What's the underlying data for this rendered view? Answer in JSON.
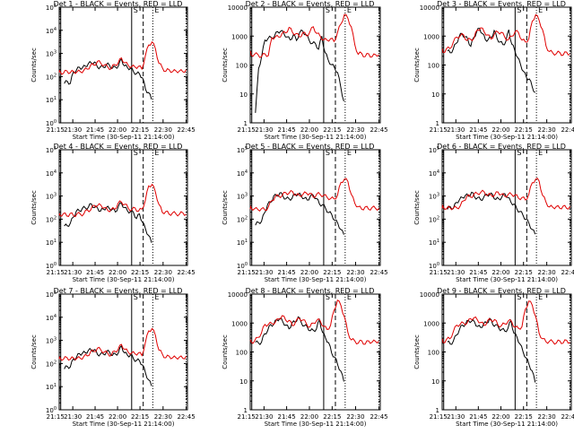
{
  "colors": {
    "events": "#000000",
    "lld": "#e00000",
    "axis": "#000000",
    "background": "#ffffff"
  },
  "shared": {
    "xlabel": "Start Time (30-Sep-11 21:14:00)",
    "ylabel": "Counts/sec",
    "title_suffix": "BLACK = Events, RED = LLD",
    "x_ticks": [
      "21:15",
      "21:30",
      "21:45",
      "22:00",
      "22:15",
      "22:30",
      "22:45"
    ],
    "markers": [
      "S",
      "E"
    ]
  },
  "chart_data": [
    {
      "type": "line",
      "title": "Det 1",
      "y_scale": "log",
      "y_ticks": [
        "10^0",
        "10^1",
        "10^2",
        "10^3",
        "10^4",
        "10^5"
      ],
      "ylim": [
        1,
        100000
      ],
      "series": [
        {
          "name": "Events",
          "color": "black",
          "values": [
            50,
            60,
            55,
            140,
            210,
            230,
            250,
            280,
            350,
            420,
            380,
            290,
            240,
            270,
            330,
            300,
            250,
            230,
            330,
            520,
            310,
            240,
            220,
            180,
            120,
            150,
            80,
            30,
            20,
            10
          ]
        },
        {
          "name": "LLD",
          "color": "red",
          "values": [
            150,
            160,
            150,
            160,
            165,
            150,
            170,
            160,
            180,
            230,
            280,
            350,
            420,
            390,
            310,
            250,
            240,
            300,
            420,
            580,
            420,
            300,
            260,
            280,
            250,
            240,
            700,
            2500,
            3100,
            1500,
            400,
            220,
            190,
            180,
            175,
            170,
            170,
            175,
            180
          ]
        }
      ]
    },
    {
      "type": "line",
      "title": "Det 2",
      "y_scale": "log",
      "y_ticks": [
        "1",
        "10",
        "100",
        "1000",
        "10000"
      ],
      "ylim": [
        1,
        10000
      ],
      "series": [
        {
          "name": "Events",
          "color": "black",
          "values": [
            2,
            80,
            200,
            700,
            900,
            800,
            1100,
            1300,
            1600,
            1200,
            900,
            800,
            1000,
            800,
            1200,
            1600,
            1100,
            700,
            600,
            500,
            400,
            900,
            300,
            150,
            100,
            90,
            50,
            20,
            5
          ]
        },
        {
          "name": "LLD",
          "color": "red",
          "values": [
            250,
            240,
            230,
            220,
            210,
            220,
            240,
            800,
            1000,
            900,
            1200,
            1400,
            1800,
            1500,
            1100,
            1000,
            1300,
            1000,
            1500,
            1900,
            1400,
            900,
            800,
            700,
            800,
            700,
            1200,
            3000,
            5000,
            4500,
            2000,
            500,
            250,
            230,
            220,
            220,
            210,
            220,
            230
          ]
        }
      ]
    },
    {
      "type": "line",
      "title": "Det 3",
      "y_scale": "log",
      "y_ticks": [
        "1",
        "10",
        "100",
        "1000",
        "10000"
      ],
      "ylim": [
        1,
        10000
      ],
      "series": [
        {
          "name": "Events",
          "color": "black",
          "values": [
            280,
            300,
            320,
            600,
            900,
            1200,
            1000,
            700,
            500,
            800,
            1500,
            1800,
            1200,
            800,
            700,
            1000,
            1400,
            900,
            600,
            500,
            700,
            1500,
            600,
            300,
            200,
            100,
            60,
            40,
            30,
            20,
            10
          ]
        },
        {
          "name": "LLD",
          "color": "red",
          "values": [
            300,
            310,
            330,
            400,
            600,
            900,
            1100,
            1000,
            800,
            700,
            900,
            1600,
            1900,
            1500,
            1000,
            900,
            1100,
            1500,
            1300,
            900,
            800,
            900,
            1600,
            1200,
            800,
            600,
            800,
            3500,
            5000,
            4000,
            1500,
            500,
            280,
            260,
            260,
            250,
            250,
            250,
            260
          ]
        }
      ]
    },
    {
      "type": "line",
      "title": "Det 4",
      "y_scale": "log",
      "y_ticks": [
        "10^0",
        "10^1",
        "10^2",
        "10^3",
        "10^4",
        "10^5"
      ],
      "ylim": [
        1,
        100000
      ],
      "series": [
        {
          "name": "Events",
          "color": "black",
          "values": [
            50,
            55,
            60,
            140,
            200,
            250,
            280,
            300,
            350,
            420,
            360,
            280,
            240,
            260,
            320,
            300,
            250,
            230,
            330,
            540,
            300,
            230,
            220,
            180,
            120,
            150,
            80,
            35,
            20,
            10
          ]
        },
        {
          "name": "LLD",
          "color": "red",
          "values": [
            150,
            155,
            160,
            155,
            160,
            150,
            165,
            160,
            180,
            230,
            280,
            360,
            420,
            380,
            310,
            250,
            240,
            300,
            430,
            600,
            420,
            300,
            260,
            280,
            250,
            240,
            700,
            2600,
            3200,
            1500,
            400,
            220,
            190,
            180,
            175,
            170,
            170,
            175,
            180
          ]
        }
      ]
    },
    {
      "type": "line",
      "title": "Det 5",
      "y_scale": "log",
      "y_ticks": [
        "10^0",
        "10^1",
        "10^2",
        "10^3",
        "10^4",
        "10^5"
      ],
      "ylim": [
        1,
        100000
      ],
      "series": [
        {
          "name": "Events",
          "color": "black",
          "values": [
            60,
            70,
            80,
            200,
            400,
            600,
            900,
            1100,
            1300,
            1000,
            800,
            700,
            900,
            1100,
            1300,
            1000,
            800,
            700,
            900,
            1200,
            700,
            500,
            400,
            300,
            200,
            150,
            100,
            60,
            40,
            20
          ]
        },
        {
          "name": "LLD",
          "color": "red",
          "values": [
            300,
            290,
            280,
            270,
            260,
            280,
            300,
            700,
            900,
            1000,
            1100,
            1300,
            1500,
            1400,
            1200,
            1000,
            1200,
            1400,
            1200,
            1000,
            1100,
            1300,
            1000,
            900,
            800,
            700,
            1200,
            3500,
            6000,
            4000,
            1200,
            500,
            320,
            300,
            300,
            300,
            300,
            300,
            300
          ]
        }
      ]
    },
    {
      "type": "line",
      "title": "Det 6",
      "y_scale": "log",
      "y_ticks": [
        "10^0",
        "10^1",
        "10^2",
        "10^3",
        "10^4",
        "10^5"
      ],
      "ylim": [
        1,
        100000
      ],
      "series": [
        {
          "name": "Events",
          "color": "black",
          "values": [
            300,
            310,
            320,
            500,
            700,
            900,
            1000,
            1100,
            1300,
            1000,
            800,
            700,
            900,
            1100,
            1300,
            1000,
            800,
            700,
            900,
            1300,
            800,
            600,
            400,
            300,
            200,
            150,
            100,
            60,
            40,
            20
          ]
        },
        {
          "name": "LLD",
          "color": "red",
          "values": [
            330,
            320,
            310,
            300,
            300,
            320,
            340,
            700,
            900,
            1000,
            1100,
            1300,
            1500,
            1400,
            1200,
            1000,
            1200,
            1400,
            1200,
            1000,
            1100,
            1300,
            1000,
            900,
            800,
            700,
            1200,
            3500,
            6000,
            4000,
            1200,
            500,
            350,
            330,
            330,
            330,
            330,
            330,
            330
          ]
        }
      ]
    },
    {
      "type": "line",
      "title": "Det 7",
      "y_scale": "log",
      "y_ticks": [
        "10^0",
        "10^1",
        "10^2",
        "10^3",
        "10^4",
        "10^5"
      ],
      "ylim": [
        1,
        100000
      ],
      "series": [
        {
          "name": "Events",
          "color": "black",
          "values": [
            60,
            70,
            80,
            140,
            200,
            250,
            280,
            300,
            350,
            420,
            360,
            280,
            240,
            260,
            320,
            300,
            250,
            230,
            330,
            540,
            300,
            230,
            220,
            180,
            120,
            150,
            80,
            40,
            20,
            10
          ]
        },
        {
          "name": "LLD",
          "color": "red",
          "values": [
            160,
            165,
            170,
            165,
            170,
            160,
            175,
            170,
            190,
            240,
            290,
            370,
            430,
            390,
            320,
            260,
            250,
            310,
            440,
            620,
            430,
            310,
            270,
            290,
            260,
            250,
            720,
            2700,
            3300,
            1500,
            420,
            230,
            200,
            190,
            185,
            180,
            180,
            185,
            190
          ]
        }
      ]
    },
    {
      "type": "line",
      "title": "Det 8",
      "y_scale": "log",
      "y_ticks": [
        "1",
        "10",
        "100",
        "1000",
        "10000"
      ],
      "ylim": [
        1,
        10000
      ],
      "series": [
        {
          "name": "Events",
          "color": "black",
          "values": [
            200,
            210,
            220,
            400,
            600,
            800,
            1000,
            1200,
            1500,
            1100,
            800,
            700,
            900,
            1200,
            1500,
            1100,
            800,
            700,
            600,
            500,
            700,
            1200,
            500,
            300,
            200,
            100,
            60,
            40,
            20,
            10
          ]
        },
        {
          "name": "LLD",
          "color": "red",
          "values": [
            220,
            230,
            240,
            300,
            500,
            800,
            1000,
            900,
            1100,
            1400,
            1700,
            1400,
            1100,
            900,
            1100,
            1500,
            1300,
            900,
            800,
            900,
            1400,
            1100,
            800,
            600,
            800,
            3000,
            5500,
            4500,
            1500,
            500,
            260,
            230,
            220,
            220,
            210,
            220,
            230,
            230,
            230
          ]
        }
      ]
    },
    {
      "type": "line",
      "title": "Det 9",
      "y_scale": "log",
      "y_ticks": [
        "1",
        "10",
        "100",
        "1000",
        "10000"
      ],
      "ylim": [
        1,
        10000
      ],
      "series": [
        {
          "name": "Events",
          "color": "black",
          "values": [
            200,
            210,
            220,
            400,
            600,
            800,
            1000,
            1100,
            1300,
            1000,
            800,
            700,
            900,
            1100,
            1300,
            1000,
            800,
            700,
            600,
            500,
            700,
            1100,
            500,
            300,
            200,
            100,
            60,
            40,
            20,
            10
          ]
        },
        {
          "name": "LLD",
          "color": "red",
          "values": [
            230,
            240,
            250,
            300,
            500,
            800,
            1000,
            900,
            1100,
            1300,
            1600,
            1300,
            1000,
            900,
            1100,
            1400,
            1200,
            900,
            800,
            900,
            1300,
            1000,
            800,
            600,
            800,
            3000,
            5500,
            4500,
            1500,
            500,
            260,
            240,
            230,
            220,
            220,
            220,
            230,
            230,
            230
          ]
        }
      ]
    }
  ]
}
